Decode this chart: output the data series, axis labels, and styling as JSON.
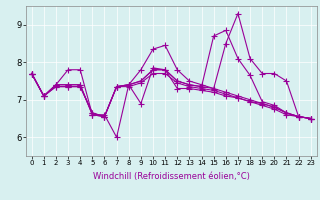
{
  "background_color": "#d8f0f0",
  "line_color": "#990099",
  "marker": "+",
  "markersize": 4,
  "linewidth": 0.8,
  "xlabel": "Windchill (Refroidissement éolien,°C)",
  "xlabel_fontsize": 6,
  "tick_fontsize": 5,
  "ytick_fontsize": 6,
  "yticks": [
    6,
    7,
    8,
    9
  ],
  "xticks": [
    0,
    1,
    2,
    3,
    4,
    5,
    6,
    7,
    8,
    9,
    10,
    11,
    12,
    13,
    14,
    15,
    16,
    17,
    18,
    19,
    20,
    21,
    22,
    23
  ],
  "xlim": [
    -0.5,
    23.5
  ],
  "ylim": [
    5.5,
    9.5
  ],
  "series": [
    [
      7.7,
      7.1,
      7.4,
      7.8,
      7.8,
      6.6,
      6.6,
      6.0,
      7.4,
      6.9,
      7.85,
      7.8,
      7.3,
      7.3,
      7.25,
      7.2,
      7.1,
      7.05,
      6.95,
      6.9,
      6.8,
      6.65,
      6.55,
      6.5
    ],
    [
      7.7,
      7.1,
      7.4,
      7.4,
      7.4,
      6.6,
      6.55,
      7.35,
      7.4,
      7.8,
      8.35,
      8.45,
      7.8,
      7.5,
      7.4,
      7.3,
      8.5,
      9.3,
      8.1,
      7.7,
      7.7,
      7.5,
      6.55,
      6.5
    ],
    [
      7.7,
      7.1,
      7.35,
      7.35,
      7.35,
      6.65,
      6.55,
      7.35,
      7.4,
      7.5,
      7.8,
      7.8,
      7.5,
      7.4,
      7.35,
      8.7,
      8.85,
      8.1,
      7.65,
      6.95,
      6.85,
      6.65,
      6.55,
      6.5
    ],
    [
      7.7,
      7.1,
      7.35,
      7.35,
      7.35,
      6.65,
      6.55,
      7.35,
      7.35,
      7.45,
      7.7,
      7.7,
      7.45,
      7.35,
      7.3,
      7.25,
      7.15,
      7.05,
      6.95,
      6.85,
      6.75,
      6.6,
      6.55,
      6.5
    ],
    [
      7.7,
      7.1,
      7.4,
      7.4,
      7.4,
      6.6,
      6.55,
      7.35,
      7.4,
      7.5,
      7.8,
      7.8,
      7.5,
      7.4,
      7.35,
      7.3,
      7.2,
      7.1,
      7.0,
      6.9,
      6.8,
      6.65,
      6.55,
      6.5
    ]
  ]
}
